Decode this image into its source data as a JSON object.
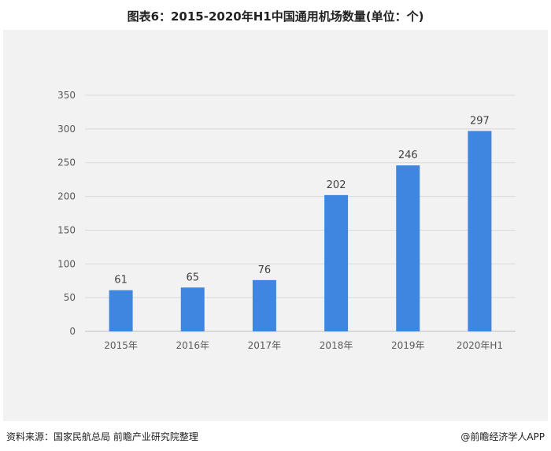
{
  "title": "图表6：2015-2020年H1中国通用机场数量(单位：个)",
  "source": "资料来源：国家民航总局   前瞻产业研究院整理",
  "brand": "@前瞻经济学人APP",
  "colors": {
    "bar": "#3f86e0",
    "grid": "#d9d9d9",
    "background": "#f2f2f2"
  },
  "chart_data": {
    "type": "bar",
    "title": "图表6：2015-2020年H1中国通用机场数量(单位：个)",
    "categories": [
      "2015年",
      "2016年",
      "2017年",
      "2018年",
      "2019年",
      "2020年H1"
    ],
    "values": [
      61,
      65,
      76,
      202,
      246,
      297
    ],
    "ylim": [
      0,
      350
    ],
    "yticks": [
      0,
      50,
      100,
      150,
      200,
      250,
      300,
      350
    ],
    "grid": true,
    "legend": "none",
    "xlabel": "",
    "ylabel": ""
  }
}
